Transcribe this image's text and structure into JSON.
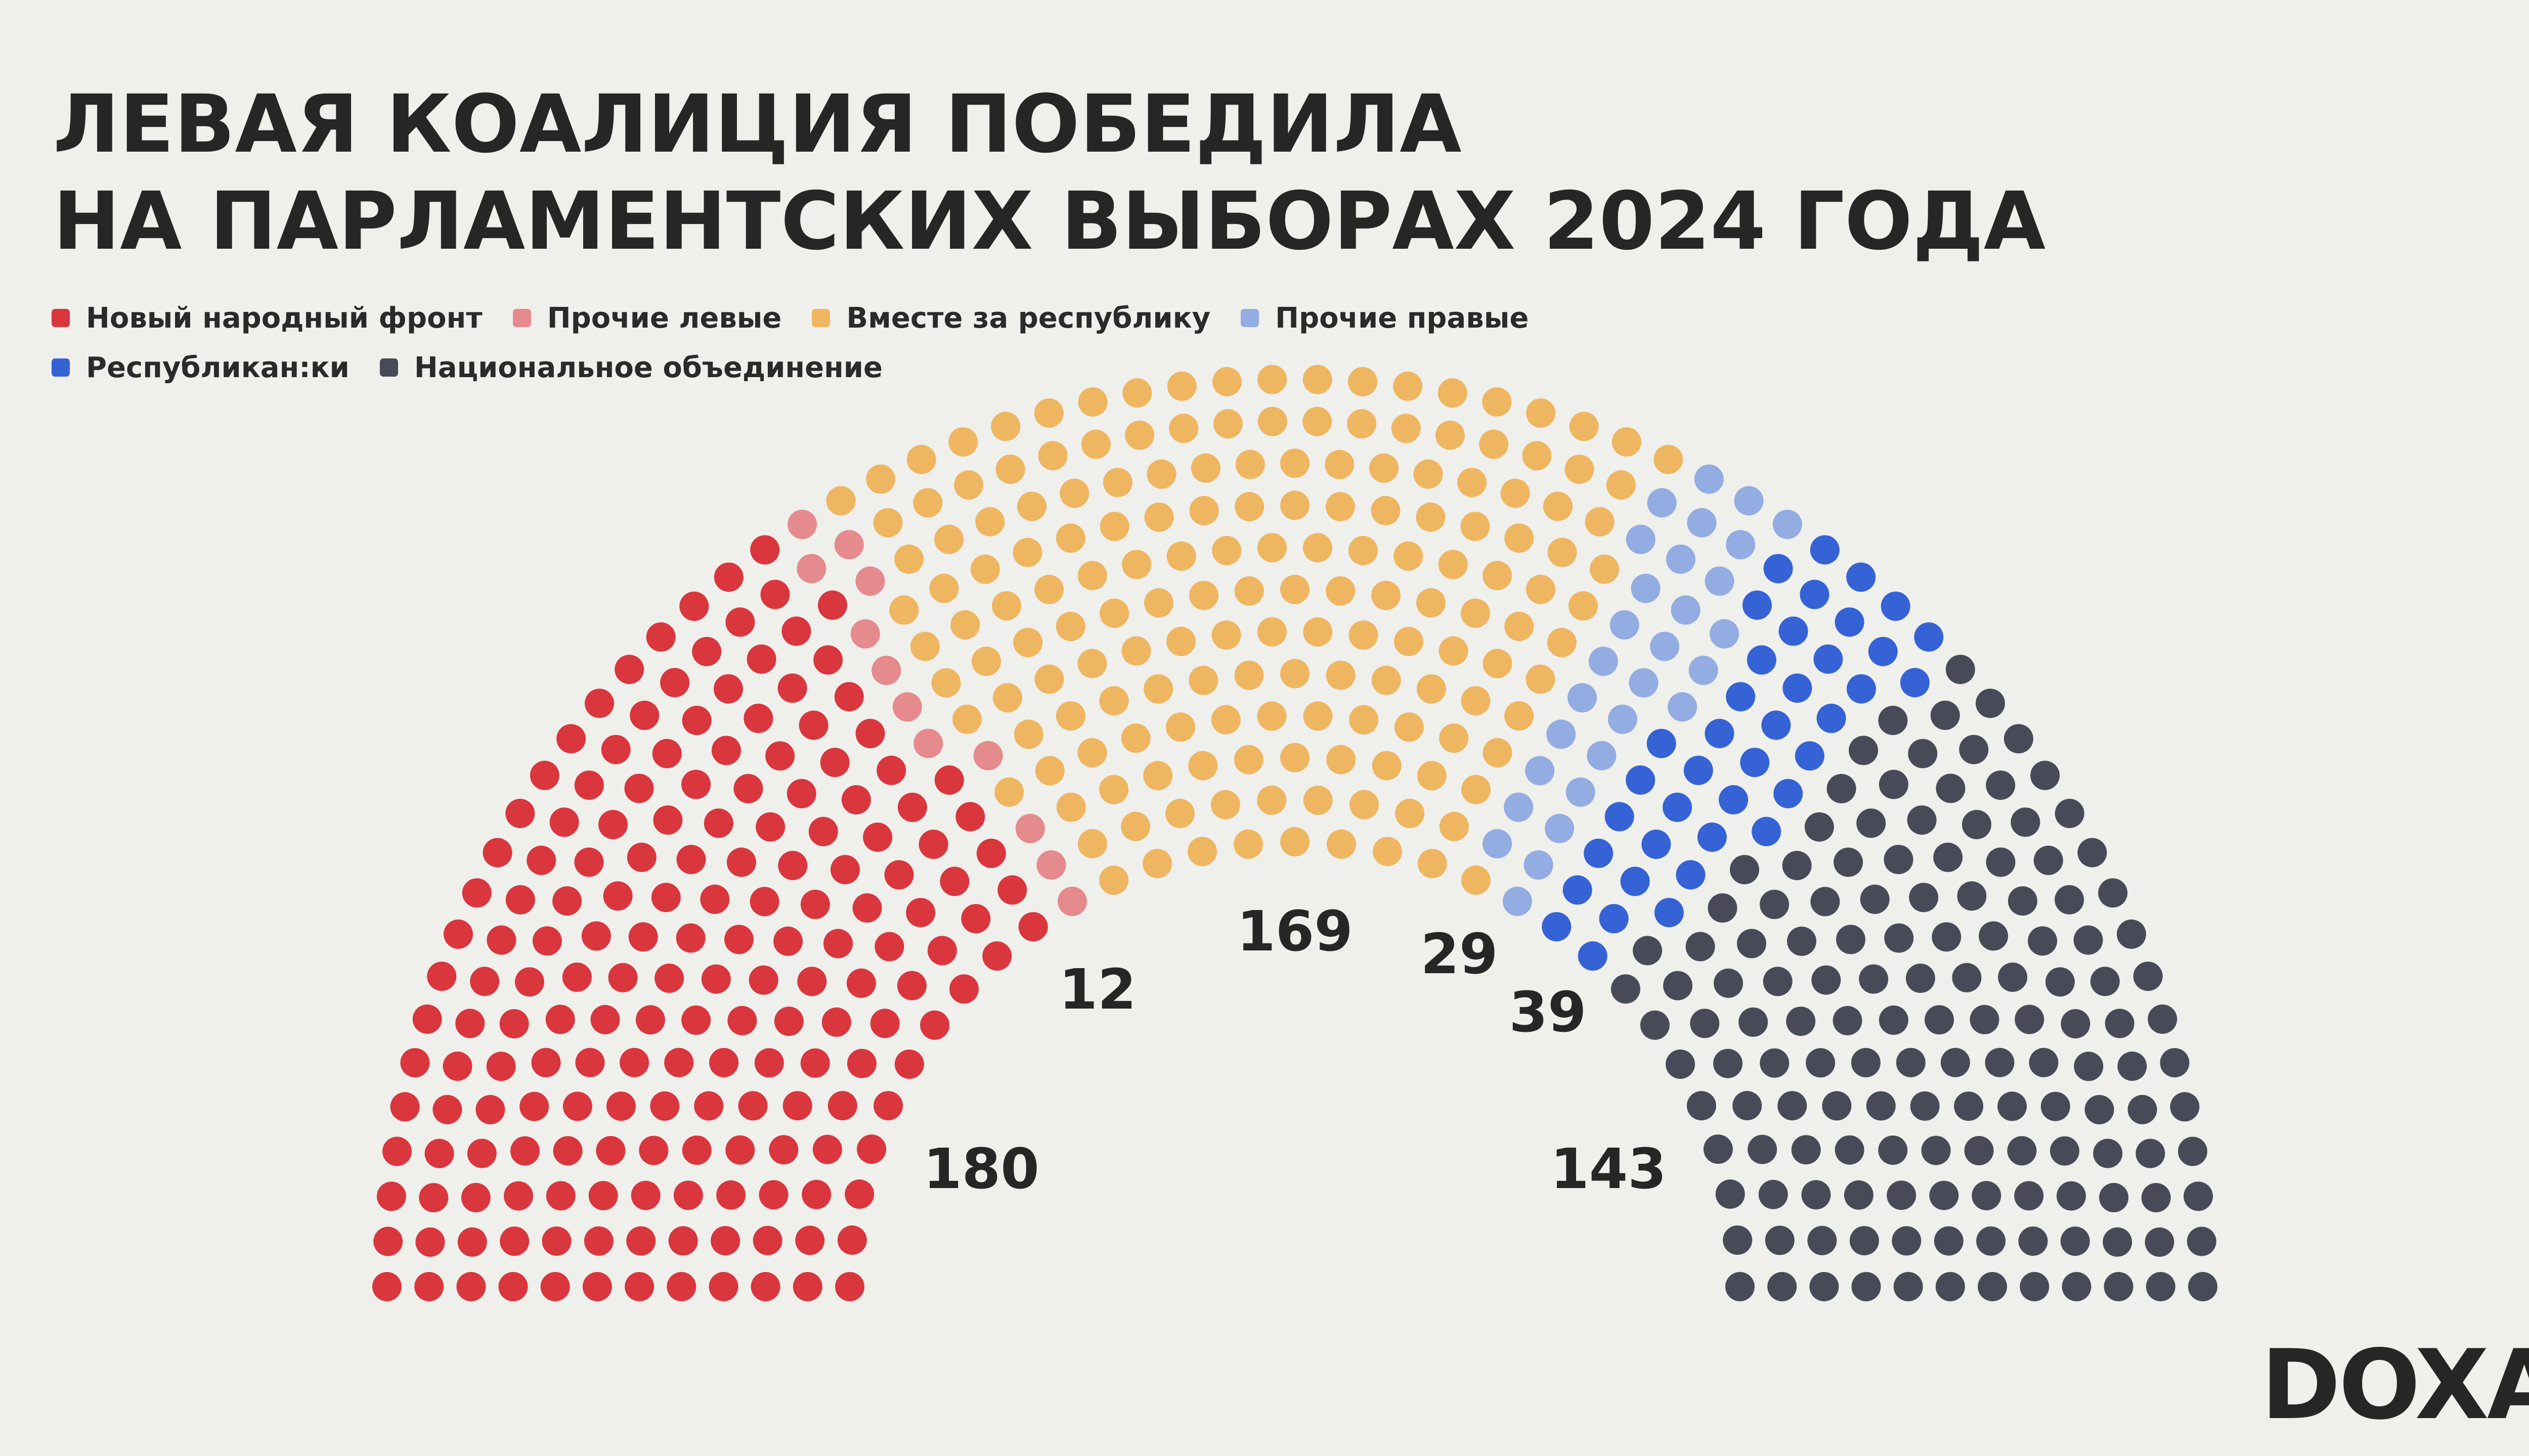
{
  "title": {
    "line1": "ЛЕВАЯ КОАЛИЦИЯ ПОБЕДИЛА",
    "line2": "НА ПАРЛАМЕНТСКИХ ВЫБОРАХ 2024 ГОДА"
  },
  "logo": "DOXA",
  "chart_data": {
    "type": "parliament",
    "total_seats": 572,
    "rows": 12,
    "series": [
      {
        "name": "Новый народный фронт",
        "value": 180,
        "label": "180",
        "color": "#d9363e"
      },
      {
        "name": "Прочие левые",
        "value": 12,
        "label": "12",
        "color": "#e58a8d"
      },
      {
        "name": "Вместе за республику",
        "value": 169,
        "label": "169",
        "color": "#efb661"
      },
      {
        "name": "Прочие правые",
        "value": 29,
        "label": "29",
        "color": "#93ace2"
      },
      {
        "name": "Республикан:ки",
        "value": 39,
        "label": "39",
        "color": "#3563d6"
      },
      {
        "name": "Национальное объединение",
        "value": 143,
        "label": "143",
        "color": "#484b57"
      }
    ],
    "legend_rows": [
      [
        0,
        1,
        2,
        3
      ],
      [
        4,
        5
      ]
    ]
  }
}
